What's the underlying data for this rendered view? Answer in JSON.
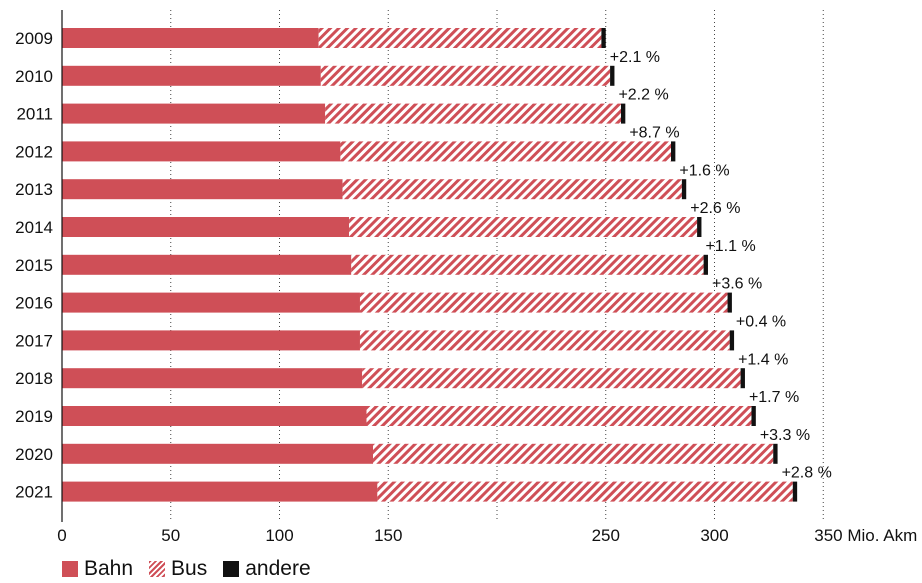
{
  "chart_data": {
    "type": "bar",
    "orientation": "horizontal",
    "stacked": true,
    "categories": [
      "2009",
      "2010",
      "2011",
      "2012",
      "2013",
      "2014",
      "2015",
      "2016",
      "2017",
      "2018",
      "2019",
      "2020",
      "2021"
    ],
    "series": [
      {
        "name": "Bahn",
        "values": [
          118,
          119,
          121,
          128,
          129,
          132,
          133,
          137,
          137,
          138,
          140,
          143,
          145
        ],
        "color": "#cf4f57",
        "pattern": "solid"
      },
      {
        "name": "Bus",
        "values": [
          130,
          133,
          136,
          152,
          156,
          160,
          162,
          169,
          170,
          174,
          177,
          184,
          191
        ],
        "color": "#cf4f57",
        "pattern": "hatched"
      },
      {
        "name": "andere",
        "values": [
          2,
          2,
          2,
          2,
          2,
          2,
          2,
          2,
          2,
          2,
          2,
          2,
          2
        ],
        "color": "#111111",
        "pattern": "solid"
      }
    ],
    "change_labels": [
      null,
      "+2.1 %",
      "+2.2 %",
      "+8.7 %",
      "+1.6 %",
      "+2.6 %",
      "+1.1 %",
      "+3.6 %",
      "+0.4 %",
      "+1.4 %",
      "+1.7 %",
      "+3.3 %",
      "+2.8 %"
    ],
    "x_ticks": [
      "0",
      "50",
      "100",
      "150",
      "250",
      "300",
      "350 Mio. Akm"
    ],
    "x_tick_values": [
      0,
      50,
      100,
      150,
      250,
      300,
      350
    ],
    "xlim": [
      0,
      350
    ],
    "grid": "vertical dotted",
    "legend_position": "bottom-left"
  },
  "legend": {
    "bahn": "Bahn",
    "bus": "Bus",
    "andere": "andere"
  }
}
